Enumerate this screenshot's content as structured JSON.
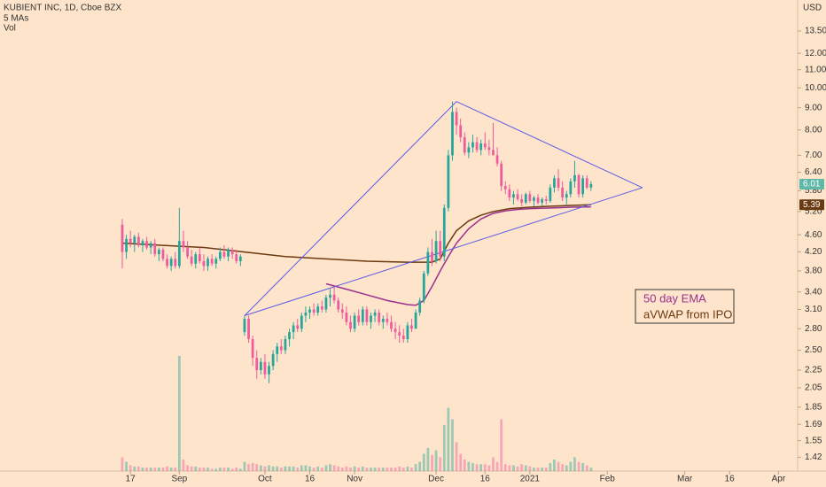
{
  "chart_data": {
    "type": "candlestick",
    "title": "KUBIENT INC, 1D, Cboe BZX",
    "subtitles": [
      "5 MAs",
      "Vol"
    ],
    "currency": "USD",
    "log_scale": true,
    "ylim": [
      1.32,
      15.9
    ],
    "xlim": [
      -30,
      165.7
    ],
    "yticks": [
      {
        "value": 13.5,
        "label": "13.50"
      },
      {
        "value": 12,
        "label": "12.00"
      },
      {
        "value": 11,
        "label": "11.00"
      },
      {
        "value": 10,
        "label": "10.00"
      },
      {
        "value": 9,
        "label": "9.00"
      },
      {
        "value": 8,
        "label": "8.00"
      },
      {
        "value": 7,
        "label": "7.00"
      },
      {
        "value": 6.4,
        "label": "6.40"
      },
      {
        "value": 5.8,
        "label": "5.80"
      },
      {
        "value": 5.2,
        "label": "5.20"
      },
      {
        "value": 4.6,
        "label": "4.60"
      },
      {
        "value": 4.2,
        "label": "4.20"
      },
      {
        "value": 3.8,
        "label": "3.80"
      },
      {
        "value": 3.4,
        "label": "3.40"
      },
      {
        "value": 3.1,
        "label": "3.10"
      },
      {
        "value": 2.8,
        "label": "2.80"
      },
      {
        "value": 2.5,
        "label": "2.50"
      },
      {
        "value": 2.25,
        "label": "2.25"
      },
      {
        "value": 2.05,
        "label": "2.05"
      },
      {
        "value": 1.85,
        "label": "1.85"
      },
      {
        "value": 1.69,
        "label": "1.69"
      },
      {
        "value": 1.55,
        "label": "1.55"
      },
      {
        "value": 1.42,
        "label": "1.42"
      }
    ],
    "xticks": [
      {
        "value": 2,
        "label": "17"
      },
      {
        "value": 14,
        "label": "Sep"
      },
      {
        "value": 35,
        "label": "Oct"
      },
      {
        "value": 46,
        "label": "16"
      },
      {
        "value": 57,
        "label": "Nov"
      },
      {
        "value": 77,
        "label": "Dec"
      },
      {
        "value": 89,
        "label": "16"
      },
      {
        "value": 100,
        "label": "2021"
      },
      {
        "value": 119,
        "label": "Feb"
      },
      {
        "value": 138,
        "label": "Mar"
      },
      {
        "value": 149,
        "label": "16"
      },
      {
        "value": 161,
        "label": "Apr"
      }
    ],
    "up_color": "#26a69a",
    "down_color": "#ef5b9c",
    "candles": [
      [
        4.85,
        5.0,
        3.85,
        4.2,
        12
      ],
      [
        4.2,
        4.6,
        4.05,
        4.5,
        8
      ],
      [
        4.5,
        4.7,
        4.3,
        4.4,
        5
      ],
      [
        4.4,
        4.6,
        4.2,
        4.55,
        4
      ],
      [
        4.55,
        4.65,
        4.3,
        4.35,
        4
      ],
      [
        4.35,
        4.5,
        4.2,
        4.45,
        3
      ],
      [
        4.45,
        4.55,
        4.25,
        4.3,
        3
      ],
      [
        4.3,
        4.45,
        4.15,
        4.4,
        3
      ],
      [
        4.4,
        4.5,
        4.1,
        4.15,
        3
      ],
      [
        4.15,
        4.3,
        4.0,
        4.25,
        3
      ],
      [
        4.25,
        4.3,
        4.0,
        4.05,
        3
      ],
      [
        4.05,
        4.15,
        3.85,
        3.9,
        4
      ],
      [
        3.9,
        4.1,
        3.8,
        4.05,
        3
      ],
      [
        4.05,
        4.2,
        3.85,
        3.9,
        3
      ],
      [
        3.9,
        5.3,
        3.85,
        4.45,
        100
      ],
      [
        4.45,
        4.7,
        4.2,
        4.3,
        10
      ],
      [
        4.3,
        4.45,
        4.05,
        4.1,
        5
      ],
      [
        4.1,
        4.25,
        3.9,
        3.95,
        4
      ],
      [
        3.95,
        4.2,
        3.85,
        4.15,
        4
      ],
      [
        4.15,
        4.3,
        3.95,
        4.0,
        3
      ],
      [
        4.0,
        4.15,
        3.8,
        3.9,
        3
      ],
      [
        3.9,
        4.1,
        3.8,
        4.05,
        3
      ],
      [
        4.05,
        4.15,
        3.9,
        3.95,
        2
      ],
      [
        3.95,
        4.1,
        3.85,
        4.05,
        2
      ],
      [
        4.05,
        4.3,
        4.0,
        4.2,
        3
      ],
      [
        4.2,
        4.35,
        4.05,
        4.1,
        3
      ],
      [
        4.1,
        4.3,
        4.0,
        4.25,
        3
      ],
      [
        4.25,
        4.3,
        4.05,
        4.15,
        2
      ],
      [
        4.15,
        4.25,
        3.95,
        4.0,
        3
      ],
      [
        4.0,
        4.15,
        3.9,
        4.1,
        2
      ],
      [
        2.75,
        3.0,
        2.7,
        2.95,
        8
      ],
      [
        2.95,
        3.0,
        2.6,
        2.65,
        6
      ],
      [
        2.65,
        2.7,
        2.3,
        2.4,
        7
      ],
      [
        2.4,
        2.5,
        2.15,
        2.25,
        6
      ],
      [
        2.25,
        2.4,
        2.2,
        2.35,
        5
      ],
      [
        2.35,
        2.45,
        2.15,
        2.2,
        4
      ],
      [
        2.2,
        2.35,
        2.1,
        2.3,
        5
      ],
      [
        2.3,
        2.5,
        2.25,
        2.45,
        4
      ],
      [
        2.45,
        2.6,
        2.35,
        2.55,
        4
      ],
      [
        2.55,
        2.65,
        2.45,
        2.5,
        3
      ],
      [
        2.5,
        2.7,
        2.45,
        2.65,
        4
      ],
      [
        2.65,
        2.8,
        2.55,
        2.75,
        4
      ],
      [
        2.75,
        2.9,
        2.65,
        2.85,
        4
      ],
      [
        2.85,
        2.95,
        2.75,
        2.8,
        3
      ],
      [
        2.8,
        3.05,
        2.75,
        3.0,
        5
      ],
      [
        3.0,
        3.15,
        2.9,
        3.05,
        5
      ],
      [
        3.05,
        3.15,
        2.95,
        3.1,
        4
      ],
      [
        3.1,
        3.2,
        3.0,
        3.05,
        3
      ],
      [
        3.05,
        3.2,
        3.0,
        3.15,
        4
      ],
      [
        3.15,
        3.25,
        3.05,
        3.1,
        3
      ],
      [
        3.1,
        3.35,
        3.05,
        3.3,
        5
      ],
      [
        3.3,
        3.45,
        3.15,
        3.35,
        6
      ],
      [
        3.35,
        3.5,
        3.2,
        3.25,
        5
      ],
      [
        3.25,
        3.3,
        3.05,
        3.1,
        4
      ],
      [
        3.1,
        3.2,
        2.95,
        3.05,
        3
      ],
      [
        3.05,
        3.15,
        2.85,
        2.9,
        4
      ],
      [
        2.9,
        3.0,
        2.75,
        2.8,
        3
      ],
      [
        2.8,
        3.05,
        2.75,
        3.0,
        4
      ],
      [
        3.0,
        3.1,
        2.85,
        2.9,
        3
      ],
      [
        2.9,
        3.15,
        2.85,
        3.1,
        4
      ],
      [
        3.1,
        3.15,
        2.85,
        2.9,
        3
      ],
      [
        2.9,
        3.05,
        2.8,
        3.0,
        3
      ],
      [
        3.0,
        3.1,
        2.9,
        3.05,
        3
      ],
      [
        3.05,
        3.1,
        2.85,
        2.9,
        3
      ],
      [
        2.9,
        3.0,
        2.8,
        2.95,
        3
      ],
      [
        2.95,
        3.05,
        2.85,
        2.9,
        3
      ],
      [
        2.9,
        3.0,
        2.75,
        2.8,
        3
      ],
      [
        2.8,
        2.9,
        2.65,
        2.75,
        3
      ],
      [
        2.75,
        2.85,
        2.6,
        2.7,
        4
      ],
      [
        2.7,
        2.8,
        2.6,
        2.65,
        3
      ],
      [
        2.65,
        2.9,
        2.6,
        2.85,
        4
      ],
      [
        2.85,
        2.95,
        2.75,
        2.8,
        3
      ],
      [
        2.8,
        3.1,
        2.8,
        3.05,
        6
      ],
      [
        3.05,
        3.3,
        3.0,
        3.25,
        8
      ],
      [
        3.25,
        3.8,
        3.2,
        3.75,
        15
      ],
      [
        3.75,
        4.3,
        3.7,
        4.2,
        20
      ],
      [
        4.2,
        4.5,
        3.9,
        4.0,
        14
      ],
      [
        4.0,
        4.7,
        3.95,
        4.45,
        18
      ],
      [
        4.45,
        4.7,
        4.0,
        4.1,
        12
      ],
      [
        4.1,
        5.4,
        4.0,
        5.3,
        40
      ],
      [
        5.3,
        7.2,
        5.2,
        7.0,
        55
      ],
      [
        7.0,
        9.3,
        6.8,
        8.8,
        45
      ],
      [
        8.8,
        9.0,
        7.8,
        8.2,
        25
      ],
      [
        8.2,
        8.5,
        7.5,
        7.7,
        15
      ],
      [
        7.7,
        7.9,
        7.0,
        7.1,
        10
      ],
      [
        7.1,
        7.5,
        6.9,
        7.3,
        8
      ],
      [
        7.3,
        7.8,
        7.1,
        7.5,
        7
      ],
      [
        7.5,
        7.7,
        7.1,
        7.2,
        6
      ],
      [
        7.2,
        7.6,
        7.0,
        7.45,
        6
      ],
      [
        7.45,
        7.9,
        7.2,
        7.3,
        6
      ],
      [
        7.3,
        7.6,
        7.0,
        7.2,
        5
      ],
      [
        7.2,
        8.3,
        7.1,
        7.0,
        12
      ],
      [
        7.0,
        7.3,
        6.6,
        6.7,
        8
      ],
      [
        6.7,
        6.8,
        5.8,
        5.95,
        45
      ],
      [
        5.95,
        6.1,
        5.7,
        5.85,
        6
      ],
      [
        5.85,
        6.0,
        5.5,
        5.6,
        5
      ],
      [
        5.6,
        5.8,
        5.4,
        5.7,
        5
      ],
      [
        5.7,
        5.85,
        5.5,
        5.55,
        4
      ],
      [
        5.55,
        5.7,
        5.35,
        5.45,
        6
      ],
      [
        5.45,
        5.75,
        5.4,
        5.7,
        5
      ],
      [
        5.7,
        5.8,
        5.45,
        5.5,
        4
      ],
      [
        5.5,
        5.65,
        5.35,
        5.6,
        3
      ],
      [
        5.6,
        5.7,
        5.4,
        5.45,
        3
      ],
      [
        5.45,
        5.6,
        5.35,
        5.55,
        3
      ],
      [
        5.55,
        5.65,
        5.4,
        5.5,
        3
      ],
      [
        5.5,
        6.0,
        5.45,
        5.9,
        7
      ],
      [
        5.9,
        6.3,
        5.75,
        6.2,
        10
      ],
      [
        6.2,
        6.5,
        5.8,
        5.9,
        8
      ],
      [
        5.9,
        6.1,
        5.5,
        5.6,
        6
      ],
      [
        5.6,
        5.8,
        5.4,
        5.7,
        5
      ],
      [
        5.7,
        6.2,
        5.6,
        6.1,
        8
      ],
      [
        6.1,
        6.8,
        5.9,
        6.3,
        12
      ],
      [
        6.3,
        6.35,
        5.6,
        5.7,
        8
      ],
      [
        5.7,
        6.3,
        5.6,
        6.2,
        7
      ],
      [
        6.2,
        6.3,
        5.85,
        5.9,
        5
      ],
      [
        5.9,
        6.1,
        5.8,
        6.01,
        3
      ]
    ],
    "series": [
      {
        "name": "50 day EMA",
        "color": "#9c2f8c",
        "x": [
          50,
          55,
          60,
          65,
          70,
          72,
          74,
          76,
          78,
          80,
          82,
          85,
          88,
          91,
          94,
          97,
          100,
          105,
          110,
          115
        ],
        "values": [
          3.55,
          3.45,
          3.35,
          3.25,
          3.18,
          3.17,
          3.25,
          3.5,
          3.8,
          4.1,
          4.4,
          4.75,
          5.0,
          5.15,
          5.22,
          5.26,
          5.28,
          5.3,
          5.32,
          5.33
        ]
      },
      {
        "name": "aVWAP from IPO",
        "color": "#6b3a10",
        "x": [
          0,
          10,
          20,
          30,
          40,
          50,
          60,
          70,
          76,
          78,
          80,
          82,
          85,
          88,
          91,
          95,
          100,
          105,
          110,
          115
        ],
        "values": [
          4.4,
          4.35,
          4.3,
          4.2,
          4.1,
          4.05,
          4.0,
          3.98,
          3.98,
          4.05,
          4.4,
          4.7,
          4.95,
          5.1,
          5.2,
          5.28,
          5.32,
          5.35,
          5.37,
          5.39
        ]
      }
    ],
    "trendlines": {
      "color": "#5b5be8",
      "lines": [
        {
          "x": [
            30,
            82
          ],
          "values": [
            3.0,
            9.3
          ]
        },
        {
          "x": [
            30,
            127.6
          ],
          "values": [
            3.0,
            5.9
          ]
        },
        {
          "x": [
            82,
            127.6
          ],
          "values": [
            9.3,
            5.9
          ]
        }
      ]
    },
    "price_badges": [
      {
        "value": 6.01,
        "color": "#5fb8a8"
      },
      {
        "value": 5.39,
        "color": "#6b3a10"
      }
    ]
  }
}
